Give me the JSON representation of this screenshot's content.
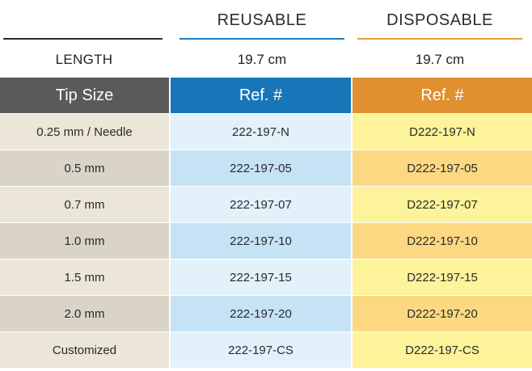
{
  "columns": {
    "reusable": "REUSABLE",
    "disposable": "DISPOSABLE"
  },
  "length": {
    "label": "LENGTH",
    "reusable": "19.7 cm",
    "disposable": "19.7 cm"
  },
  "table": {
    "headers": [
      "Tip Size",
      "Ref. #",
      "Ref. #"
    ],
    "rows": [
      [
        "0.25 mm / Needle",
        "222-197-N",
        "D222-197-N"
      ],
      [
        "0.5 mm",
        "222-197-05",
        "D222-197-05"
      ],
      [
        "0.7 mm",
        "222-197-07",
        "D222-197-07"
      ],
      [
        "1.0 mm",
        "222-197-10",
        "D222-197-10"
      ],
      [
        "1.5 mm",
        "222-197-15",
        "D222-197-15"
      ],
      [
        "2.0 mm",
        "222-197-20",
        "D222-197-20"
      ],
      [
        "Customized",
        "222-197-CS",
        "D222-197-CS"
      ]
    ]
  },
  "colors": {
    "header_tip": "#5a5a5a",
    "header_reusable": "#1776b8",
    "header_disposable": "#e0902f",
    "rule_reusable": "#1f7fc0",
    "rule_disposable": "#e89a3c"
  }
}
